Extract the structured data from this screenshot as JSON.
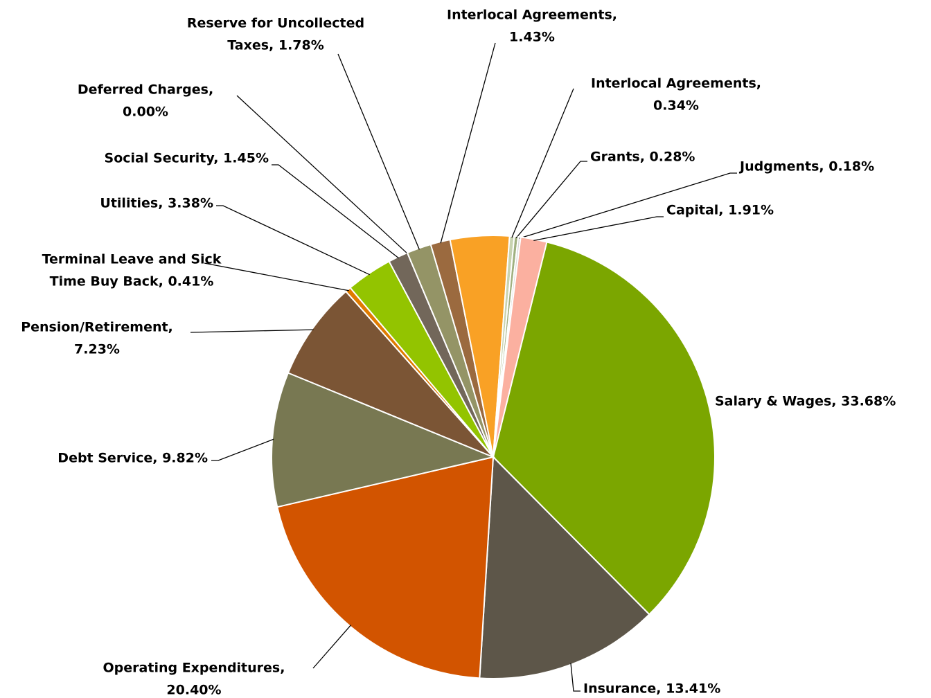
{
  "chart_data": {
    "type": "pie",
    "labels": [
      [
        "Salary & Wages, 33.68%"
      ],
      [
        "Insurance, 13.41%"
      ],
      [
        "Operating Expenditures,",
        "20.40%"
      ],
      [
        "Debt Service, 9.82%"
      ],
      [
        "Pension/Retirement,",
        "7.23%"
      ],
      [
        "Terminal Leave and Sick",
        "Time Buy Back, 0.41%"
      ],
      [
        "Utilities, 3.38%"
      ],
      [
        "Social Security, 1.45%"
      ],
      [
        "Deferred Charges,",
        "0.00%"
      ],
      [
        "Reserve for Uncollected",
        "Taxes, 1.78%"
      ],
      [
        "Interlocal Agreements,",
        "1.43%"
      ],
      null,
      [
        "Interlocal Agreements,",
        "0.34%"
      ],
      [
        "Grants, 0.28%"
      ],
      [
        "Judgments, 0.18%"
      ],
      [
        "Capital, 1.91%"
      ]
    ],
    "values": [
      33.68,
      13.41,
      20.4,
      9.82,
      7.23,
      0.41,
      3.38,
      1.45,
      0.0,
      1.78,
      1.43,
      4.3,
      0.34,
      0.28,
      0.18,
      1.91
    ],
    "colors": [
      "#7ba600",
      "#5d5649",
      "#d25400",
      "#787852",
      "#7b5535",
      "#e07b00",
      "#93c400",
      "#72675a",
      "#666666",
      "#949466",
      "#9b6a3f",
      "#f9a125",
      "#c8d3b0",
      "#a0b080",
      "#d9d9d9",
      "#fbb0a0"
    ]
  }
}
